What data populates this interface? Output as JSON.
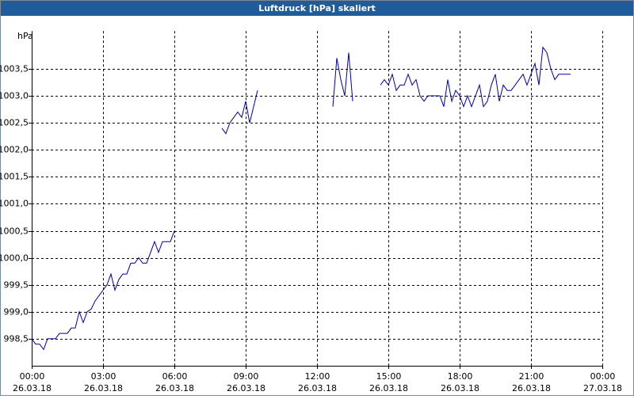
{
  "chart_data": {
    "type": "line",
    "title": "Luftdruck [hPa] skaliert",
    "y_label": "hPa",
    "xlim": [
      0,
      1440
    ],
    "xticks": [
      {
        "value": 0,
        "label": [
          "00:00",
          "26.03.18"
        ]
      },
      {
        "value": 180,
        "label": [
          "03:00",
          "26.03.18"
        ]
      },
      {
        "value": 360,
        "label": [
          "06:00",
          "26.03.18"
        ]
      },
      {
        "value": 540,
        "label": [
          "09:00",
          "26.03.18"
        ]
      },
      {
        "value": 720,
        "label": [
          "12:00",
          "26.03.18"
        ]
      },
      {
        "value": 900,
        "label": [
          "15:00",
          "26.03.18"
        ]
      },
      {
        "value": 1080,
        "label": [
          "18:00",
          "26.03.18"
        ]
      },
      {
        "value": 1260,
        "label": [
          "21:00",
          "26.03.18"
        ]
      },
      {
        "value": 1440,
        "label": [
          "00:00",
          "27.03.18"
        ]
      }
    ],
    "ylim": [
      998.0,
      1004.2
    ],
    "yticks": [
      {
        "value": 998.5,
        "label": "998,5"
      },
      {
        "value": 999.0,
        "label": "999,0"
      },
      {
        "value": 999.5,
        "label": "999,5"
      },
      {
        "value": 1000.0,
        "label": "1000,0"
      },
      {
        "value": 1000.5,
        "label": "1000,5"
      },
      {
        "value": 1001.0,
        "label": "1001,0"
      },
      {
        "value": 1001.5,
        "label": "1001,5"
      },
      {
        "value": 1002.0,
        "label": "1002,0"
      },
      {
        "value": 1002.5,
        "label": "1002,5"
      },
      {
        "value": 1003.0,
        "label": "1003,0"
      },
      {
        "value": 1003.5,
        "label": "1003,5"
      }
    ],
    "grid": true,
    "x": [
      0,
      10,
      20,
      30,
      40,
      50,
      60,
      70,
      80,
      90,
      100,
      110,
      120,
      130,
      140,
      150,
      160,
      170,
      180,
      190,
      200,
      210,
      220,
      230,
      240,
      250,
      260,
      270,
      280,
      290,
      300,
      310,
      320,
      330,
      340,
      350,
      360,
      370,
      480,
      490,
      500,
      510,
      520,
      530,
      540,
      550,
      560,
      570,
      580,
      760,
      770,
      780,
      790,
      800,
      810,
      820,
      880,
      890,
      900,
      910,
      920,
      930,
      940,
      950,
      960,
      970,
      980,
      990,
      1000,
      1010,
      1020,
      1030,
      1040,
      1050,
      1060,
      1070,
      1080,
      1090,
      1100,
      1110,
      1120,
      1130,
      1140,
      1150,
      1160,
      1170,
      1180,
      1190,
      1200,
      1210,
      1220,
      1230,
      1240,
      1250,
      1260,
      1270,
      1280,
      1290,
      1300,
      1310,
      1320,
      1330,
      1340,
      1350,
      1360
    ],
    "series": [
      {
        "color": "#0000a0",
        "values": [
          998.5,
          998.4,
          998.4,
          998.3,
          998.5,
          998.5,
          998.5,
          998.6,
          998.6,
          998.6,
          998.7,
          998.7,
          999.0,
          998.8,
          999.0,
          999.05,
          999.2,
          999.3,
          999.4,
          999.5,
          999.7,
          999.4,
          999.6,
          999.7,
          999.7,
          999.9,
          999.9,
          1000.0,
          999.9,
          999.9,
          1000.1,
          1000.3,
          1000.1,
          1000.3,
          1000.3,
          1000.3,
          1000.5,
          null,
          1002.4,
          1002.3,
          1002.5,
          1002.6,
          1002.7,
          1002.6,
          1002.9,
          1002.5,
          1002.8,
          1003.1,
          null,
          1002.8,
          1003.7,
          1003.3,
          1003.0,
          1003.8,
          1002.9,
          null,
          1003.2,
          1003.3,
          1003.2,
          1003.4,
          1003.1,
          1003.2,
          1003.2,
          1003.4,
          1003.2,
          1003.3,
          1003.0,
          1002.9,
          1003.0,
          1003.0,
          1003.0,
          1003.0,
          1002.8,
          1003.3,
          1002.9,
          1003.1,
          1003.0,
          1002.8,
          1003.0,
          1002.8,
          1003.0,
          1003.2,
          1002.8,
          1002.9,
          1003.2,
          1003.4,
          1002.9,
          1003.2,
          1003.1,
          1003.1,
          1003.2,
          1003.3,
          1003.4,
          1003.2,
          1003.4,
          1003.6,
          1003.2,
          1003.9,
          1003.8,
          1003.5,
          1003.3,
          1003.4,
          1003.4,
          1003.4,
          1003.4
        ]
      }
    ]
  }
}
